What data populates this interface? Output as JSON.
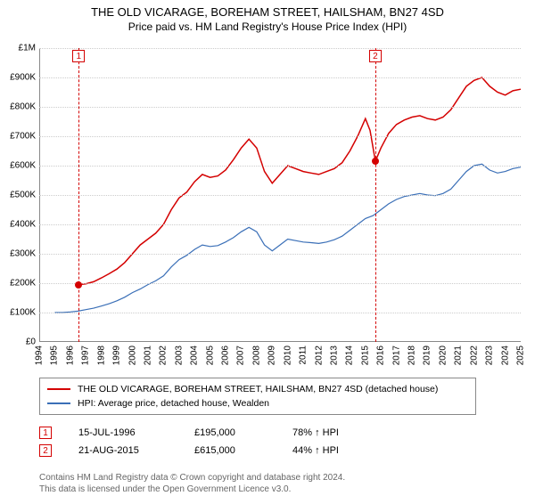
{
  "title": "THE OLD VICARAGE, BOREHAM STREET, HAILSHAM, BN27 4SD",
  "subtitle": "Price paid vs. HM Land Registry's House Price Index (HPI)",
  "chart": {
    "type": "line",
    "background_color": "#ffffff",
    "grid_color": "#cccccc",
    "axis_color": "#888888",
    "label_fontsize": 10,
    "x": {
      "min": 1994,
      "max": 2025,
      "ticks": [
        1994,
        1995,
        1996,
        1997,
        1998,
        1999,
        2000,
        2001,
        2002,
        2003,
        2004,
        2005,
        2006,
        2007,
        2008,
        2009,
        2010,
        2011,
        2012,
        2013,
        2014,
        2015,
        2016,
        2017,
        2018,
        2019,
        2020,
        2021,
        2022,
        2023,
        2024,
        2025
      ]
    },
    "y": {
      "min": 0,
      "max": 1000000,
      "ticks": [
        0,
        100000,
        200000,
        300000,
        400000,
        500000,
        600000,
        700000,
        800000,
        900000,
        1000000
      ],
      "tick_labels": [
        "£0",
        "£100K",
        "£200K",
        "£300K",
        "£400K",
        "£500K",
        "£600K",
        "£700K",
        "£800K",
        "£900K",
        "£1M"
      ]
    },
    "series": [
      {
        "id": "price_paid",
        "label": "THE OLD VICARAGE, BOREHAM STREET, HAILSHAM, BN27 4SD (detached house)",
        "color": "#d40000",
        "line_width": 1.5,
        "points": [
          [
            1996.54,
            195000
          ],
          [
            1997,
            198000
          ],
          [
            1997.5,
            205000
          ],
          [
            1998,
            218000
          ],
          [
            1998.5,
            232000
          ],
          [
            1999,
            248000
          ],
          [
            1999.5,
            270000
          ],
          [
            2000,
            300000
          ],
          [
            2000.5,
            330000
          ],
          [
            2001,
            350000
          ],
          [
            2001.5,
            370000
          ],
          [
            2002,
            400000
          ],
          [
            2002.5,
            450000
          ],
          [
            2003,
            490000
          ],
          [
            2003.5,
            510000
          ],
          [
            2004,
            545000
          ],
          [
            2004.5,
            570000
          ],
          [
            2005,
            560000
          ],
          [
            2005.5,
            565000
          ],
          [
            2006,
            585000
          ],
          [
            2006.5,
            620000
          ],
          [
            2007,
            660000
          ],
          [
            2007.5,
            690000
          ],
          [
            2008,
            660000
          ],
          [
            2008.5,
            580000
          ],
          [
            2009,
            540000
          ],
          [
            2009.5,
            570000
          ],
          [
            2010,
            600000
          ],
          [
            2010.5,
            590000
          ],
          [
            2011,
            580000
          ],
          [
            2011.5,
            575000
          ],
          [
            2012,
            570000
          ],
          [
            2012.5,
            580000
          ],
          [
            2013,
            590000
          ],
          [
            2013.5,
            610000
          ],
          [
            2014,
            650000
          ],
          [
            2014.5,
            700000
          ],
          [
            2015,
            760000
          ],
          [
            2015.3,
            720000
          ],
          [
            2015.64,
            615000
          ],
          [
            2016,
            660000
          ],
          [
            2016.5,
            710000
          ],
          [
            2017,
            740000
          ],
          [
            2017.5,
            755000
          ],
          [
            2018,
            765000
          ],
          [
            2018.5,
            770000
          ],
          [
            2019,
            760000
          ],
          [
            2019.5,
            755000
          ],
          [
            2020,
            765000
          ],
          [
            2020.5,
            790000
          ],
          [
            2021,
            830000
          ],
          [
            2021.5,
            870000
          ],
          [
            2022,
            890000
          ],
          [
            2022.5,
            900000
          ],
          [
            2023,
            870000
          ],
          [
            2023.5,
            850000
          ],
          [
            2024,
            840000
          ],
          [
            2024.5,
            855000
          ],
          [
            2025,
            860000
          ]
        ]
      },
      {
        "id": "hpi",
        "label": "HPI: Average price, detached house, Wealden",
        "color": "#3a6fb7",
        "line_width": 1.2,
        "points": [
          [
            1995,
            100000
          ],
          [
            1995.5,
            100000
          ],
          [
            1996,
            102000
          ],
          [
            1996.5,
            105000
          ],
          [
            1997,
            110000
          ],
          [
            1997.5,
            115000
          ],
          [
            1998,
            122000
          ],
          [
            1998.5,
            130000
          ],
          [
            1999,
            140000
          ],
          [
            1999.5,
            152000
          ],
          [
            2000,
            168000
          ],
          [
            2000.5,
            180000
          ],
          [
            2001,
            195000
          ],
          [
            2001.5,
            208000
          ],
          [
            2002,
            225000
          ],
          [
            2002.5,
            255000
          ],
          [
            2003,
            280000
          ],
          [
            2003.5,
            295000
          ],
          [
            2004,
            315000
          ],
          [
            2004.5,
            330000
          ],
          [
            2005,
            325000
          ],
          [
            2005.5,
            328000
          ],
          [
            2006,
            340000
          ],
          [
            2006.5,
            355000
          ],
          [
            2007,
            375000
          ],
          [
            2007.5,
            390000
          ],
          [
            2008,
            375000
          ],
          [
            2008.5,
            330000
          ],
          [
            2009,
            310000
          ],
          [
            2009.5,
            330000
          ],
          [
            2010,
            350000
          ],
          [
            2010.5,
            345000
          ],
          [
            2011,
            340000
          ],
          [
            2011.5,
            338000
          ],
          [
            2012,
            335000
          ],
          [
            2012.5,
            340000
          ],
          [
            2013,
            348000
          ],
          [
            2013.5,
            360000
          ],
          [
            2014,
            380000
          ],
          [
            2014.5,
            400000
          ],
          [
            2015,
            420000
          ],
          [
            2015.5,
            430000
          ],
          [
            2016,
            450000
          ],
          [
            2016.5,
            470000
          ],
          [
            2017,
            485000
          ],
          [
            2017.5,
            495000
          ],
          [
            2018,
            500000
          ],
          [
            2018.5,
            505000
          ],
          [
            2019,
            500000
          ],
          [
            2019.5,
            498000
          ],
          [
            2020,
            505000
          ],
          [
            2020.5,
            520000
          ],
          [
            2021,
            550000
          ],
          [
            2021.5,
            580000
          ],
          [
            2022,
            600000
          ],
          [
            2022.5,
            605000
          ],
          [
            2023,
            585000
          ],
          [
            2023.5,
            575000
          ],
          [
            2024,
            580000
          ],
          [
            2024.5,
            590000
          ],
          [
            2025,
            595000
          ]
        ]
      }
    ],
    "markers": [
      {
        "n": "1",
        "x": 1996.54,
        "y": 195000,
        "color": "#d40000"
      },
      {
        "n": "2",
        "x": 2015.64,
        "y": 615000,
        "color": "#d40000"
      }
    ]
  },
  "legend": {
    "rows": [
      {
        "color": "#d40000",
        "label_path": "chart.series.0.label"
      },
      {
        "color": "#3a6fb7",
        "label_path": "chart.series.1.label"
      }
    ]
  },
  "sales": [
    {
      "n": "1",
      "color": "#d40000",
      "date": "15-JUL-1996",
      "price": "£195,000",
      "pct": "78% ↑ HPI"
    },
    {
      "n": "2",
      "color": "#d40000",
      "date": "21-AUG-2015",
      "price": "£615,000",
      "pct": "44% ↑ HPI"
    }
  ],
  "footnote": {
    "line1": "Contains HM Land Registry data © Crown copyright and database right 2024.",
    "line2": "This data is licensed under the Open Government Licence v3.0."
  }
}
